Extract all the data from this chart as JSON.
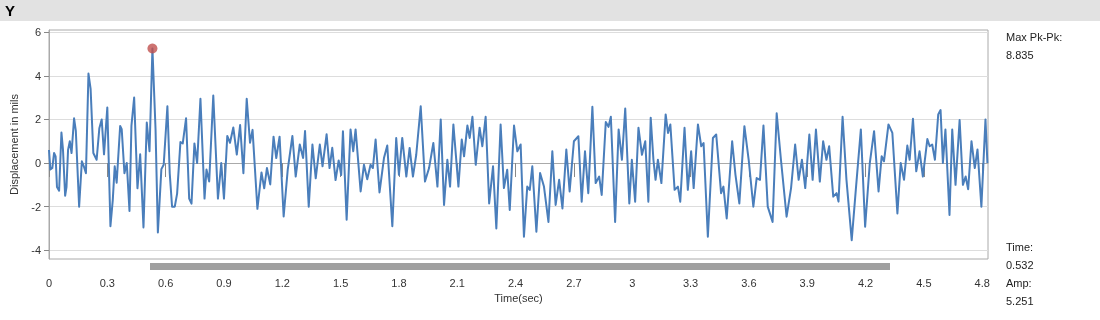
{
  "chart_data": {
    "type": "line",
    "title": "Y",
    "xlabel": "Time(sec)",
    "ylabel": "Displacement in mils",
    "xlim": [
      0,
      4.83
    ],
    "xticks": [
      0,
      0.3,
      0.6,
      0.9,
      1.2,
      1.5,
      1.8,
      2.1,
      2.4,
      2.7,
      3,
      3.3,
      3.6,
      3.9,
      4.2,
      4.5,
      4.8
    ],
    "ylim": [
      -4.4,
      6.1
    ],
    "yticks": [
      -4,
      -2,
      0,
      2,
      4,
      6
    ],
    "grid": "y",
    "line_style": "solid",
    "annotations": [
      "Max Pk-Pk:",
      "8.835",
      "Time:",
      "0.532",
      "Amp:",
      "5.251"
    ],
    "series": [
      {
        "type": "line",
        "color": "#4a7ebb",
        "marker": "none",
        "x": [
          0,
          0.007,
          0.017,
          0.026,
          0.034,
          0.041,
          0.052,
          0.064,
          0.072,
          0.083,
          0.09,
          0.098,
          0.107,
          0.116,
          0.129,
          0.138,
          0.155,
          0.169,
          0.179,
          0.19,
          0.203,
          0.214,
          0.228,
          0.245,
          0.259,
          0.271,
          0.283,
          0.3,
          0.316,
          0.328,
          0.338,
          0.348,
          0.366,
          0.374,
          0.388,
          0.4,
          0.414,
          0.424,
          0.438,
          0.455,
          0.469,
          0.486,
          0.503,
          0.517,
          0.532,
          0.548,
          0.56,
          0.578,
          0.59,
          0.609,
          0.621,
          0.633,
          0.647,
          0.659,
          0.676,
          0.688,
          0.705,
          0.721,
          0.733,
          0.748,
          0.762,
          0.779,
          0.8,
          0.81,
          0.824,
          0.845,
          0.869,
          0.886,
          0.9,
          0.917,
          0.931,
          0.948,
          0.966,
          0.983,
          1.0,
          1.017,
          1.034,
          1.047,
          1.072,
          1.093,
          1.107,
          1.121,
          1.138,
          1.155,
          1.169,
          1.186,
          1.207,
          1.228,
          1.252,
          1.269,
          1.29,
          1.307,
          1.317,
          1.336,
          1.355,
          1.372,
          1.393,
          1.407,
          1.428,
          1.443,
          1.457,
          1.474,
          1.49,
          1.503,
          1.512,
          1.531,
          1.551,
          1.565,
          1.577,
          1.603,
          1.62,
          1.637,
          1.654,
          1.666,
          1.68,
          1.7,
          1.723,
          1.74,
          1.766,
          1.786,
          1.8,
          1.817,
          1.838,
          1.855,
          1.872,
          1.889,
          1.912,
          1.934,
          1.955,
          1.977,
          1.998,
          2.015,
          2.032,
          2.049,
          2.063,
          2.08,
          2.106,
          2.123,
          2.135,
          2.152,
          2.164,
          2.178,
          2.195,
          2.215,
          2.229,
          2.246,
          2.264,
          2.284,
          2.301,
          2.323,
          2.34,
          2.357,
          2.37,
          2.392,
          2.409,
          2.426,
          2.443,
          2.46,
          2.473,
          2.486,
          2.507,
          2.526,
          2.546,
          2.569,
          2.589,
          2.606,
          2.624,
          2.641,
          2.661,
          2.678,
          2.7,
          2.723,
          2.74,
          2.757,
          2.774,
          2.795,
          2.812,
          2.83,
          2.843,
          2.864,
          2.878,
          2.89,
          2.912,
          2.93,
          2.947,
          2.964,
          2.985,
          2.998,
          3.015,
          3.032,
          3.05,
          3.067,
          3.083,
          3.095,
          3.109,
          3.12,
          3.132,
          3.15,
          3.172,
          3.184,
          3.196,
          3.218,
          3.235,
          3.247,
          3.269,
          3.286,
          3.303,
          3.316,
          3.338,
          3.355,
          3.367,
          3.389,
          3.415,
          3.432,
          3.457,
          3.469,
          3.486,
          3.514,
          3.531,
          3.551,
          3.577,
          3.599,
          3.623,
          3.64,
          3.657,
          3.675,
          3.697,
          3.722,
          3.743,
          3.765,
          3.794,
          3.817,
          3.838,
          3.856,
          3.873,
          3.89,
          3.911,
          3.928,
          3.945,
          3.965,
          3.982,
          3.999,
          4.013,
          4.034,
          4.051,
          4.061,
          4.082,
          4.102,
          4.129,
          4.15,
          4.176,
          4.198,
          4.222,
          4.244,
          4.267,
          4.283,
          4.295,
          4.318,
          4.338,
          4.364,
          4.381,
          4.398,
          4.415,
          4.427,
          4.444,
          4.461,
          4.478,
          4.495,
          4.518,
          4.53,
          4.543,
          4.557,
          4.574,
          4.586,
          4.598,
          4.611,
          4.632,
          4.646,
          4.663,
          4.684,
          4.701,
          4.715,
          4.728,
          4.745,
          4.762,
          4.776,
          4.796,
          4.817,
          4.827
        ],
        "values": [
          0.6,
          -0.3,
          -0.23,
          0.46,
          0.3,
          -1.1,
          -1.27,
          1.4,
          0.6,
          -1.5,
          -1.1,
          0.6,
          1.0,
          0.46,
          2.05,
          1.47,
          -2.0,
          0.08,
          -0.15,
          -0.47,
          4.1,
          3.4,
          0.46,
          0.15,
          1.6,
          2.0,
          0.4,
          2.55,
          -2.9,
          -1.7,
          -0.15,
          -0.9,
          1.7,
          1.55,
          -0.47,
          0,
          -2.2,
          1.7,
          3.0,
          -1.16,
          0.4,
          -2.95,
          1.86,
          0.54,
          5.25,
          1.55,
          -3.18,
          -0.28,
          -0.08,
          2.6,
          -0.47,
          -2.0,
          -2.0,
          -1.4,
          0.96,
          0.9,
          2.05,
          -1.63,
          -1.86,
          0.9,
          0,
          2.95,
          -1.63,
          -0.3,
          -0.85,
          3.1,
          -1.63,
          0,
          -1.63,
          1.24,
          0.93,
          1.63,
          0.39,
          1.74,
          -0.47,
          2.95,
          0.93,
          1.52,
          -2.1,
          -0.43,
          -1.16,
          -0.23,
          -0.98,
          1.21,
          0.23,
          1.21,
          -2.45,
          -0.3,
          1.24,
          -0.62,
          0.85,
          0.23,
          1.47,
          -2.0,
          0.85,
          -0.7,
          0.85,
          -0.15,
          1.32,
          -0.23,
          0.7,
          -0.78,
          0.12,
          -0.55,
          1.46,
          -2.6,
          1.54,
          0.54,
          1.54,
          -1.3,
          -0.08,
          -0.74,
          -0.08,
          -0.23,
          1.08,
          -1.35,
          0.23,
          0.8,
          -2.9,
          1.15,
          -0.54,
          1.15,
          -0.62,
          0.69,
          -0.62,
          0.38,
          2.6,
          -0.85,
          -0.23,
          0.92,
          -1.08,
          2.0,
          -1.92,
          0.15,
          -1.08,
          1.77,
          -1.08,
          1.08,
          0.31,
          1.72,
          1.15,
          2.12,
          -0.08,
          1.62,
          0.77,
          2.12,
          -1.85,
          -0.15,
          -3.0,
          1.77,
          -1.15,
          -0.31,
          -2.15,
          1.72,
          0.54,
          0.85,
          -3.38,
          -1.08,
          -1.23,
          -0.15,
          -3.15,
          -0.46,
          -1.08,
          -2.7,
          0.54,
          -1.92,
          -0.77,
          -2.08,
          0.62,
          -1.3,
          1.0,
          1.23,
          -1.77,
          0.54,
          -1.38,
          2.58,
          -0.92,
          -0.62,
          -1.46,
          1.88,
          1.66,
          2.12,
          -2.7,
          1.54,
          0.15,
          2.5,
          -1.85,
          0.15,
          -1.77,
          1.62,
          0.38,
          1.0,
          -1.77,
          2.08,
          0.15,
          -0.77,
          0.15,
          -0.92,
          2.23,
          1.38,
          1.77,
          -1.23,
          -1.08,
          -1.77,
          1.62,
          -1.23,
          0.54,
          -1.15,
          1.77,
          0.77,
          0.92,
          -3.38,
          1.15,
          1.31,
          -1.38,
          -1.08,
          -2.54,
          1.0,
          -0.54,
          -1.85,
          1.69,
          0.15,
          -2.0,
          -0.69,
          -0.77,
          1.72,
          -2.0,
          -2.7,
          2.28,
          0.15,
          -2.46,
          -1.15,
          0.85,
          -0.77,
          0.15,
          -1.15,
          1.31,
          -0.77,
          1.54,
          -0.85,
          1.0,
          0.15,
          0.77,
          -1.54,
          -1.38,
          -1.77,
          2.12,
          -0.77,
          -3.54,
          -1.23,
          1.54,
          -2.92,
          0,
          1.46,
          -1.3,
          0.31,
          0.08,
          1.77,
          1.38,
          -2.31,
          0,
          -0.77,
          0.8,
          0.15,
          2.03,
          -0.38,
          0.54,
          -0.62,
          1.1,
          0.77,
          0.85,
          0.15,
          2.23,
          2.43,
          0,
          1.54,
          -2.38,
          1.54,
          -1.0,
          1.97,
          -1.0,
          -0.62,
          -1.2,
          1.0,
          -0.23,
          0.62,
          -2.0,
          2.0,
          0
        ]
      },
      {
        "type": "scatter",
        "color": "#c0504d",
        "marker": "circle",
        "x": [
          0.532
        ],
        "values": [
          5.25
        ]
      }
    ]
  }
}
